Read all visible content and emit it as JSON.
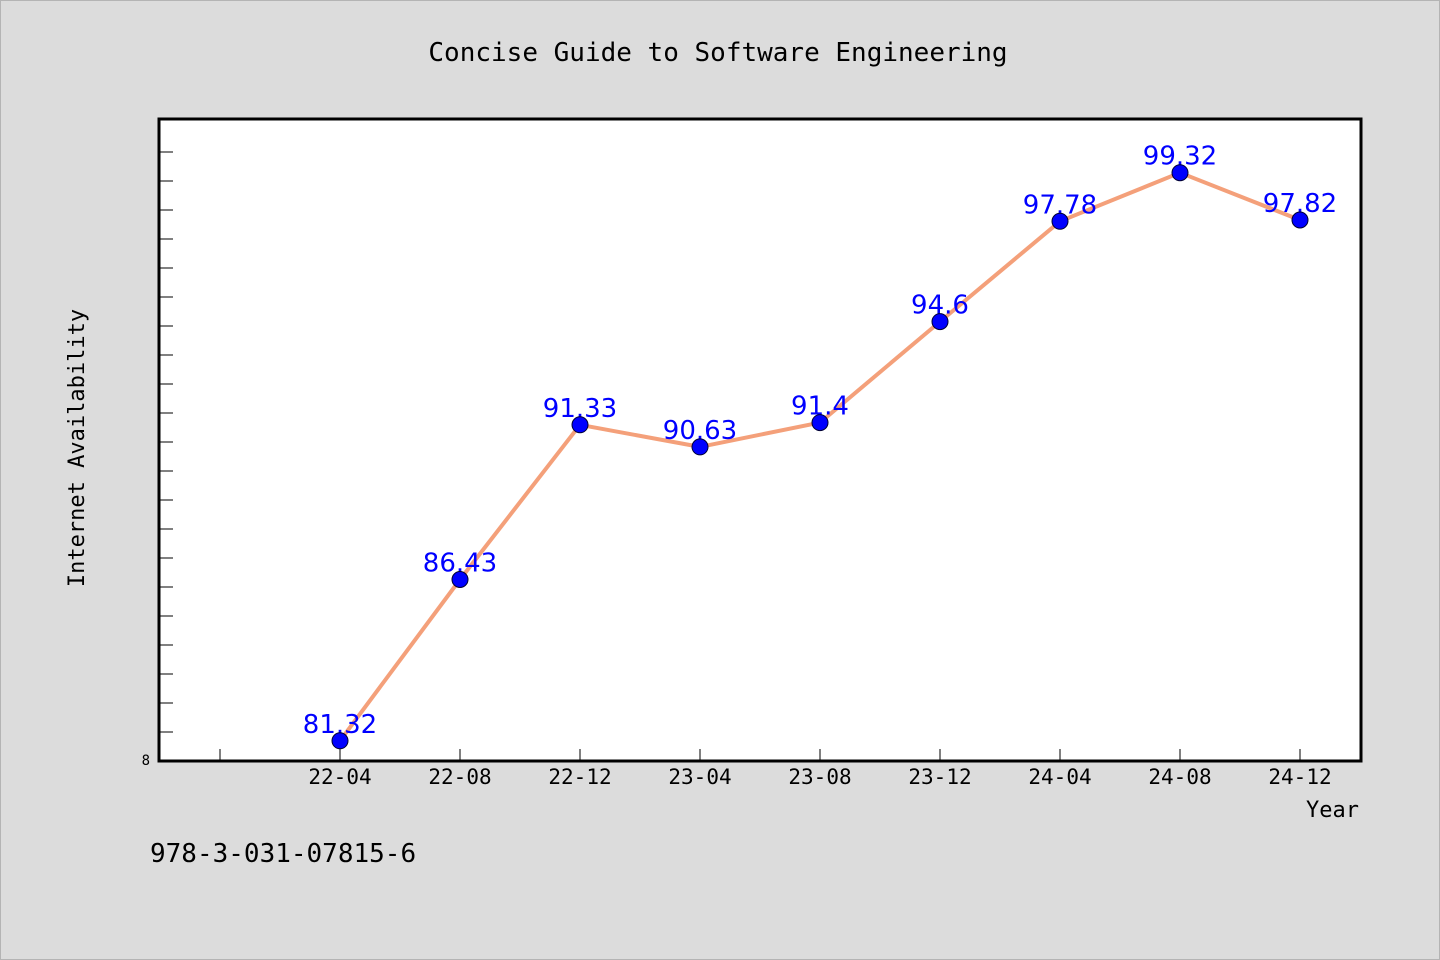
{
  "chart_data": {
    "type": "line",
    "title": "Concise Guide to Software Engineering",
    "xlabel": "Year",
    "ylabel": "Internet Availability",
    "categories": [
      "22-04",
      "22-08",
      "22-12",
      "23-04",
      "23-08",
      "23-12",
      "24-04",
      "24-08",
      "24-12"
    ],
    "series": [
      {
        "values": [
          81.32,
          86.43,
          91.33,
          90.63,
          91.4,
          94.6,
          97.78,
          99.32,
          97.82
        ],
        "data_labels": [
          "81.32",
          "86.43",
          "91.33",
          "90.63",
          "91.4",
          "94.6",
          "97.78",
          "99.32",
          "97.82"
        ],
        "line_color": "#f4a07a",
        "marker_color": "#0000ff"
      }
    ],
    "ylim": [
      80.68,
      101.02
    ],
    "y_tick_label": "8",
    "grid": false,
    "colors": {
      "background": "#dcdcdc",
      "plot_background": "#ffffff",
      "line": "#f4a07a",
      "marker": "#0000ff",
      "data_label": "#0000ff"
    }
  },
  "footer": {
    "isbn": "978-3-031-07815-6"
  }
}
